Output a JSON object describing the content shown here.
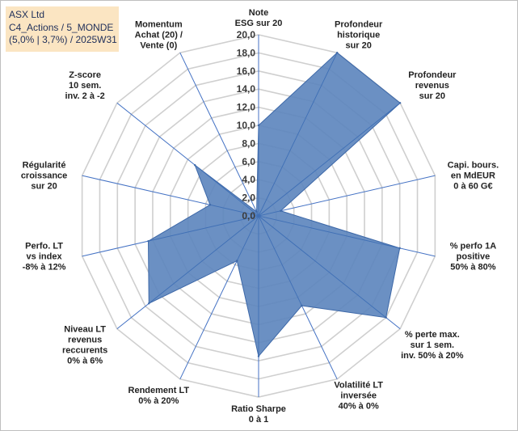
{
  "header": {
    "line1": "ASX Ltd",
    "line2": "C4_Actions / 5_MONDE",
    "line3": "(5,0% | 3,7%) / 2025W31"
  },
  "chart_data": {
    "type": "radar",
    "rlim": [
      0,
      20
    ],
    "ticks": [
      "0,0",
      "2,0",
      "4,0",
      "6,0",
      "8,0",
      "10,0",
      "12,0",
      "14,0",
      "16,0",
      "18,0",
      "20,0"
    ],
    "tick_values": [
      0,
      2,
      4,
      6,
      8,
      10,
      12,
      14,
      16,
      18,
      20
    ],
    "grid": true,
    "axes": [
      {
        "label": [
          "Note",
          "ESG sur 20"
        ],
        "value": 10
      },
      {
        "label": [
          "Profondeur",
          "historique",
          "sur 20"
        ],
        "value": 20
      },
      {
        "label": [
          "Profondeur",
          "revenus",
          "sur 20"
        ],
        "value": 20
      },
      {
        "label": [
          "Capi. bours.",
          "en MdEUR",
          "0 à 60 G€"
        ],
        "value": 2.5
      },
      {
        "label": [
          "% perfo 1A",
          "positive",
          "50% à 80%"
        ],
        "value": 16
      },
      {
        "label": [
          "% perte max.",
          "sur 1 sem.",
          "inv. 50% à 20%"
        ],
        "value": 18
      },
      {
        "label": [
          "Volatilité LT",
          "inversée",
          "40% à 0%"
        ],
        "value": 11
      },
      {
        "label": [
          "Ratio Sharpe",
          "0 à 1"
        ],
        "value": 15.5
      },
      {
        "label": [
          "Rendement LT",
          "0% à 20%"
        ],
        "value": 5.5
      },
      {
        "label": [
          "Niveau LT",
          "revenus",
          "reccurents",
          "0% à 6%"
        ],
        "value": 15.5
      },
      {
        "label": [
          "Perfo. LT",
          "vs index",
          "-8% à 12%"
        ],
        "value": 12.5
      },
      {
        "label": [
          "Régularité",
          "croissance",
          "sur 20"
        ],
        "value": 5.5
      },
      {
        "label": [
          "Z-score",
          "10 sem.",
          "inv. 2 à -2"
        ],
        "value": 9
      },
      {
        "label": [
          "Momentum",
          "Achat (20) /",
          "Vente (0)"
        ],
        "value": 0.5
      }
    ],
    "colors": {
      "fill": "#5b84bd",
      "stroke": "#3d68a8",
      "spoke": "#4472c4",
      "grid": "#cfcfcf"
    }
  }
}
